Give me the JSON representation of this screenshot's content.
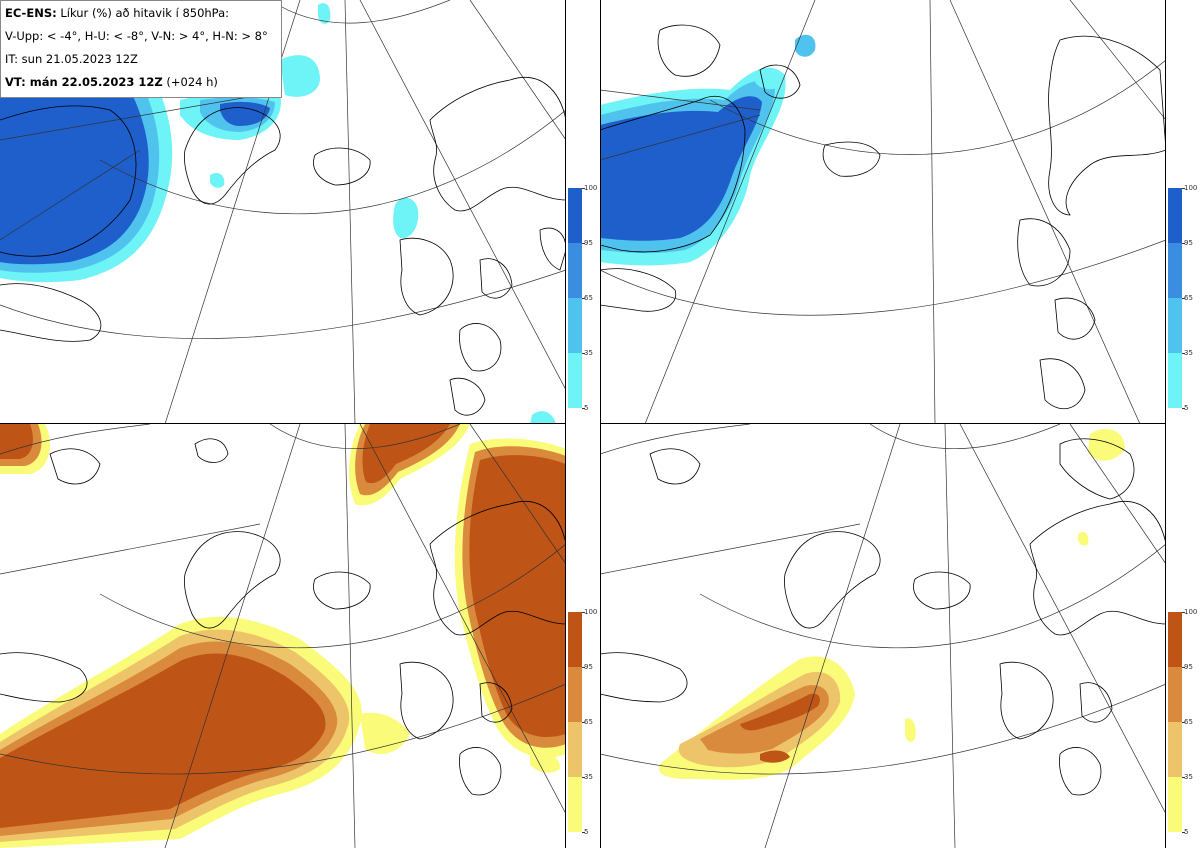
{
  "header": {
    "line1_bold": "EC-ENS:",
    "line1_rest": "Líkur (%) að hitavik í 850hPa:",
    "line2": "V-Upp: < -4°, H-U: < -8°, V-N: > 4°, H-N: > 8°",
    "line3": "IT: sun 21.05.2023 12Z",
    "line4_bold": "VT: mán 22.05.2023 12Z",
    "line4_rest": "(+024 h)"
  },
  "colorbar_cold": {
    "ticks": [
      "100",
      "95",
      "65",
      "35",
      "5"
    ],
    "colors": [
      "#1e5fcc",
      "#3b8de0",
      "#4fc3ee",
      "#6ef3f6"
    ]
  },
  "colorbar_warm": {
    "ticks": [
      "100",
      "95",
      "65",
      "35",
      "5"
    ],
    "colors": [
      "#bf5417",
      "#d98a3c",
      "#eec46a",
      "#fbfb7a"
    ]
  },
  "panels": [
    {
      "name": "top-left",
      "variable": "V-Upp",
      "palette": "cold"
    },
    {
      "name": "top-right",
      "variable": "H-U",
      "palette": "cold"
    },
    {
      "name": "bottom-left",
      "variable": "V-N",
      "palette": "warm"
    },
    {
      "name": "bottom-right",
      "variable": "H-N",
      "palette": "warm"
    }
  ]
}
